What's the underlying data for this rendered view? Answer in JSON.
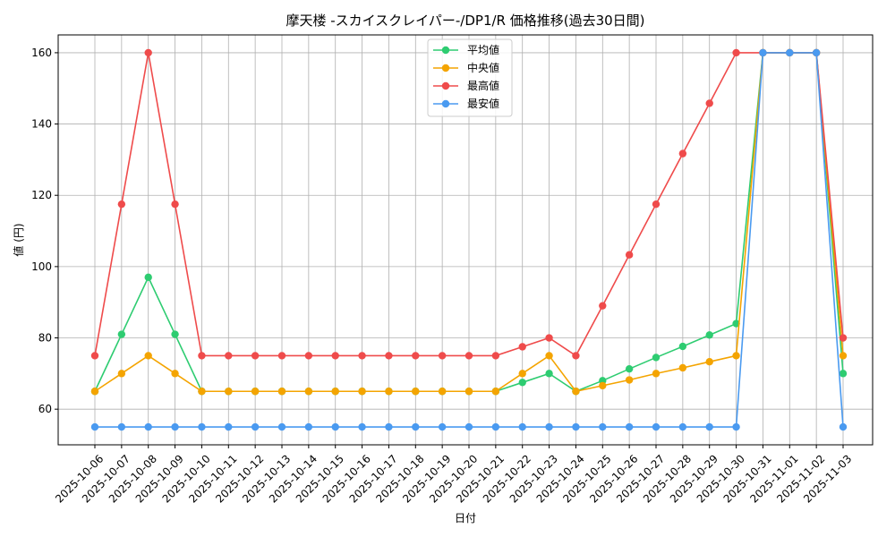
{
  "chart_data": {
    "type": "line",
    "title": "摩天楼 -スカイスクレイパー-/DP1/R 価格推移(過去30日間)",
    "xlabel": "日付",
    "ylabel": "値 (円)",
    "ylim": [
      50,
      165
    ],
    "yticks": [
      60,
      80,
      100,
      120,
      140,
      160
    ],
    "grid": true,
    "legend_position": "top-center",
    "categories": [
      "2025-10-06",
      "2025-10-07",
      "2025-10-08",
      "2025-10-09",
      "2025-10-10",
      "2025-10-11",
      "2025-10-12",
      "2025-10-13",
      "2025-10-14",
      "2025-10-15",
      "2025-10-16",
      "2025-10-17",
      "2025-10-18",
      "2025-10-19",
      "2025-10-20",
      "2025-10-21",
      "2025-10-22",
      "2025-10-23",
      "2025-10-24",
      "2025-10-25",
      "2025-10-26",
      "2025-10-27",
      "2025-10-28",
      "2025-10-29",
      "2025-10-30",
      "2025-10-31",
      "2025-11-01",
      "2025-11-02",
      "2025-11-03"
    ],
    "series": [
      {
        "name": "平均値",
        "color": "#2ecc71",
        "values": [
          65,
          81,
          97,
          81,
          65,
          65,
          65,
          65,
          65,
          65,
          65,
          65,
          65,
          65,
          65,
          65,
          67.5,
          70,
          65,
          68,
          71.3,
          74.5,
          77.6,
          80.8,
          84,
          160,
          160,
          160,
          70
        ]
      },
      {
        "name": "中央値",
        "color": "#f4a400",
        "values": [
          65,
          70,
          75,
          70,
          65,
          65,
          65,
          65,
          65,
          65,
          65,
          65,
          65,
          65,
          65,
          65,
          70,
          75,
          65,
          66.6,
          68.2,
          70,
          71.6,
          73.3,
          75,
          160,
          160,
          160,
          75
        ]
      },
      {
        "name": "最高値",
        "color": "#ef4b4b",
        "values": [
          75,
          117.5,
          160,
          117.5,
          75,
          75,
          75,
          75,
          75,
          75,
          75,
          75,
          75,
          75,
          75,
          75,
          77.5,
          80,
          75,
          89,
          103.3,
          117.5,
          131.7,
          145.8,
          160,
          160,
          160,
          160,
          80
        ]
      },
      {
        "name": "最安値",
        "color": "#4a9af0",
        "values": [
          55,
          55,
          55,
          55,
          55,
          55,
          55,
          55,
          55,
          55,
          55,
          55,
          55,
          55,
          55,
          55,
          55,
          55,
          55,
          55,
          55,
          55,
          55,
          55,
          55,
          160,
          160,
          160,
          55
        ]
      }
    ]
  }
}
